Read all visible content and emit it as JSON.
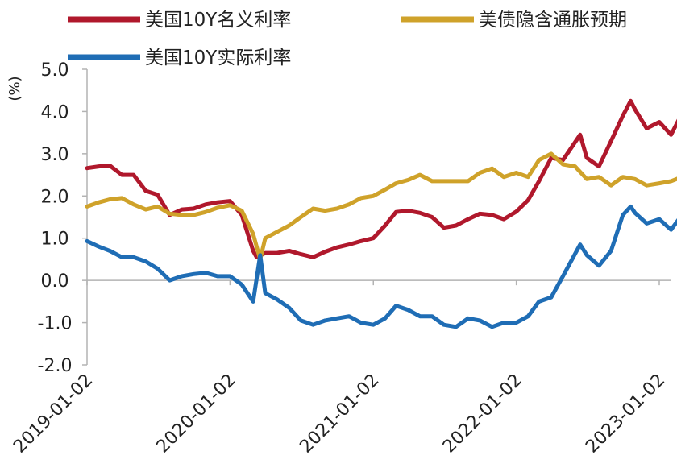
{
  "chart_data": {
    "type": "line",
    "y_unit": "(%)",
    "ylim": [
      -2.0,
      5.0
    ],
    "y_ticks": [
      "5.0",
      "4.0",
      "3.0",
      "2.0",
      "1.0",
      "0.0",
      "-1.0",
      "-2.0"
    ],
    "x_ticks": [
      "2019-01-02",
      "2020-01-02",
      "2021-01-02",
      "2022-01-02",
      "2023-01-02"
    ],
    "x_range": [
      "2019-01-02",
      "2023-03-15"
    ],
    "grid": false,
    "legend_position": "top",
    "series": [
      {
        "name": "美国10Y名义利率",
        "color": "#b0182c",
        "points": [
          [
            "2019-01-02",
            2.66
          ],
          [
            "2019-02-01",
            2.7
          ],
          [
            "2019-03-01",
            2.72
          ],
          [
            "2019-04-01",
            2.5
          ],
          [
            "2019-05-01",
            2.5
          ],
          [
            "2019-06-01",
            2.12
          ],
          [
            "2019-07-01",
            2.03
          ],
          [
            "2019-08-01",
            1.55
          ],
          [
            "2019-09-01",
            1.68
          ],
          [
            "2019-10-01",
            1.7
          ],
          [
            "2019-11-01",
            1.8
          ],
          [
            "2019-12-01",
            1.85
          ],
          [
            "2020-01-02",
            1.88
          ],
          [
            "2020-02-01",
            1.55
          ],
          [
            "2020-03-01",
            0.7
          ],
          [
            "2020-03-10",
            0.55
          ],
          [
            "2020-04-01",
            0.65
          ],
          [
            "2020-05-01",
            0.65
          ],
          [
            "2020-06-01",
            0.7
          ],
          [
            "2020-07-01",
            0.62
          ],
          [
            "2020-08-01",
            0.55
          ],
          [
            "2020-09-01",
            0.68
          ],
          [
            "2020-10-01",
            0.78
          ],
          [
            "2020-11-01",
            0.85
          ],
          [
            "2020-12-01",
            0.93
          ],
          [
            "2021-01-02",
            1.0
          ],
          [
            "2021-02-01",
            1.3
          ],
          [
            "2021-03-01",
            1.62
          ],
          [
            "2021-04-01",
            1.65
          ],
          [
            "2021-05-01",
            1.6
          ],
          [
            "2021-06-01",
            1.5
          ],
          [
            "2021-07-01",
            1.25
          ],
          [
            "2021-08-01",
            1.3
          ],
          [
            "2021-09-01",
            1.45
          ],
          [
            "2021-10-01",
            1.58
          ],
          [
            "2021-11-01",
            1.55
          ],
          [
            "2021-12-01",
            1.45
          ],
          [
            "2022-01-02",
            1.63
          ],
          [
            "2022-02-01",
            1.9
          ],
          [
            "2022-03-01",
            2.35
          ],
          [
            "2022-04-01",
            2.9
          ],
          [
            "2022-05-01",
            2.85
          ],
          [
            "2022-06-14",
            3.45
          ],
          [
            "2022-07-01",
            2.9
          ],
          [
            "2022-08-01",
            2.7
          ],
          [
            "2022-09-01",
            3.3
          ],
          [
            "2022-10-01",
            3.9
          ],
          [
            "2022-10-21",
            4.25
          ],
          [
            "2022-11-01",
            4.05
          ],
          [
            "2022-12-01",
            3.6
          ],
          [
            "2023-01-02",
            3.75
          ],
          [
            "2023-02-01",
            3.45
          ],
          [
            "2023-03-01",
            3.95
          ],
          [
            "2023-03-15",
            3.5
          ]
        ]
      },
      {
        "name": "美债隐含通胀预期",
        "color": "#cfa22a",
        "points": [
          [
            "2019-01-02",
            1.75
          ],
          [
            "2019-02-01",
            1.85
          ],
          [
            "2019-03-01",
            1.92
          ],
          [
            "2019-04-01",
            1.95
          ],
          [
            "2019-05-01",
            1.8
          ],
          [
            "2019-06-01",
            1.68
          ],
          [
            "2019-07-01",
            1.75
          ],
          [
            "2019-08-01",
            1.58
          ],
          [
            "2019-09-01",
            1.55
          ],
          [
            "2019-10-01",
            1.55
          ],
          [
            "2019-11-01",
            1.62
          ],
          [
            "2019-12-01",
            1.72
          ],
          [
            "2020-01-02",
            1.78
          ],
          [
            "2020-02-01",
            1.65
          ],
          [
            "2020-03-01",
            1.1
          ],
          [
            "2020-03-19",
            0.5
          ],
          [
            "2020-04-01",
            1.0
          ],
          [
            "2020-05-01",
            1.15
          ],
          [
            "2020-06-01",
            1.3
          ],
          [
            "2020-07-01",
            1.5
          ],
          [
            "2020-08-01",
            1.7
          ],
          [
            "2020-09-01",
            1.65
          ],
          [
            "2020-10-01",
            1.7
          ],
          [
            "2020-11-01",
            1.8
          ],
          [
            "2020-12-01",
            1.95
          ],
          [
            "2021-01-02",
            2.0
          ],
          [
            "2021-02-01",
            2.15
          ],
          [
            "2021-03-01",
            2.3
          ],
          [
            "2021-04-01",
            2.38
          ],
          [
            "2021-05-01",
            2.5
          ],
          [
            "2021-06-01",
            2.35
          ],
          [
            "2021-07-01",
            2.35
          ],
          [
            "2021-08-01",
            2.35
          ],
          [
            "2021-09-01",
            2.35
          ],
          [
            "2021-10-01",
            2.55
          ],
          [
            "2021-11-01",
            2.65
          ],
          [
            "2021-12-01",
            2.45
          ],
          [
            "2022-01-02",
            2.55
          ],
          [
            "2022-02-01",
            2.45
          ],
          [
            "2022-03-01",
            2.85
          ],
          [
            "2022-04-01",
            3.0
          ],
          [
            "2022-05-01",
            2.75
          ],
          [
            "2022-06-01",
            2.7
          ],
          [
            "2022-07-01",
            2.4
          ],
          [
            "2022-08-01",
            2.45
          ],
          [
            "2022-09-01",
            2.25
          ],
          [
            "2022-10-01",
            2.45
          ],
          [
            "2022-11-01",
            2.4
          ],
          [
            "2022-12-01",
            2.25
          ],
          [
            "2023-01-02",
            2.3
          ],
          [
            "2023-02-01",
            2.35
          ],
          [
            "2023-03-01",
            2.45
          ],
          [
            "2023-03-15",
            2.3
          ]
        ]
      },
      {
        "name": "美国10Y实际利率",
        "color": "#1f6db5",
        "points": [
          [
            "2019-01-02",
            0.93
          ],
          [
            "2019-02-01",
            0.8
          ],
          [
            "2019-03-01",
            0.7
          ],
          [
            "2019-04-01",
            0.55
          ],
          [
            "2019-05-01",
            0.55
          ],
          [
            "2019-06-01",
            0.45
          ],
          [
            "2019-07-01",
            0.28
          ],
          [
            "2019-08-01",
            0.0
          ],
          [
            "2019-09-01",
            0.1
          ],
          [
            "2019-10-01",
            0.15
          ],
          [
            "2019-11-01",
            0.18
          ],
          [
            "2019-12-01",
            0.1
          ],
          [
            "2020-01-02",
            0.1
          ],
          [
            "2020-02-01",
            -0.1
          ],
          [
            "2020-03-01",
            -0.5
          ],
          [
            "2020-03-19",
            0.6
          ],
          [
            "2020-04-01",
            -0.3
          ],
          [
            "2020-05-01",
            -0.45
          ],
          [
            "2020-06-01",
            -0.65
          ],
          [
            "2020-07-01",
            -0.95
          ],
          [
            "2020-08-01",
            -1.05
          ],
          [
            "2020-09-01",
            -0.95
          ],
          [
            "2020-10-01",
            -0.9
          ],
          [
            "2020-11-01",
            -0.85
          ],
          [
            "2020-12-01",
            -1.0
          ],
          [
            "2021-01-02",
            -1.05
          ],
          [
            "2021-02-01",
            -0.9
          ],
          [
            "2021-03-01",
            -0.6
          ],
          [
            "2021-04-01",
            -0.7
          ],
          [
            "2021-05-01",
            -0.85
          ],
          [
            "2021-06-01",
            -0.85
          ],
          [
            "2021-07-01",
            -1.05
          ],
          [
            "2021-08-01",
            -1.1
          ],
          [
            "2021-09-01",
            -0.9
          ],
          [
            "2021-10-01",
            -0.95
          ],
          [
            "2021-11-01",
            -1.1
          ],
          [
            "2021-12-01",
            -1.0
          ],
          [
            "2022-01-02",
            -1.0
          ],
          [
            "2022-02-01",
            -0.85
          ],
          [
            "2022-03-01",
            -0.5
          ],
          [
            "2022-04-01",
            -0.4
          ],
          [
            "2022-05-01",
            0.1
          ],
          [
            "2022-06-14",
            0.85
          ],
          [
            "2022-07-01",
            0.6
          ],
          [
            "2022-08-01",
            0.35
          ],
          [
            "2022-09-01",
            0.7
          ],
          [
            "2022-10-01",
            1.55
          ],
          [
            "2022-10-21",
            1.75
          ],
          [
            "2022-11-01",
            1.6
          ],
          [
            "2022-12-01",
            1.35
          ],
          [
            "2023-01-02",
            1.45
          ],
          [
            "2023-02-01",
            1.2
          ],
          [
            "2023-03-01",
            1.55
          ],
          [
            "2023-03-15",
            1.2
          ]
        ]
      }
    ]
  }
}
